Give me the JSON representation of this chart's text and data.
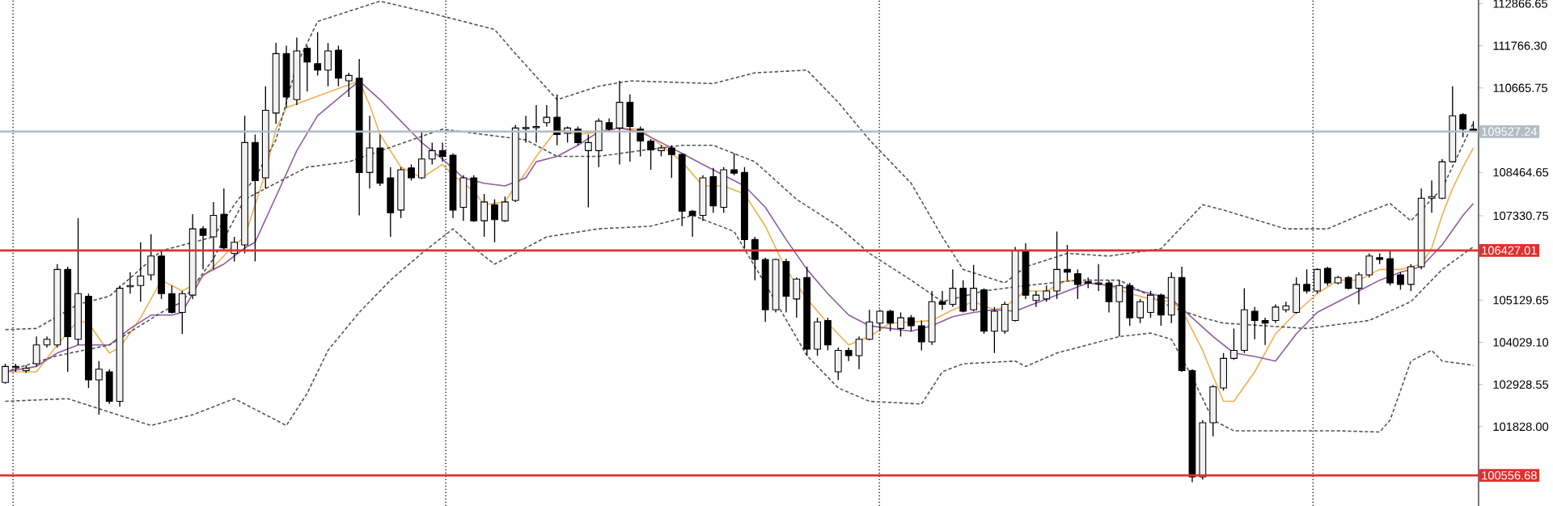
{
  "chart_data": {
    "type": "candlestick",
    "color": "#000000",
    "categories": [
      null,
      null,
      null,
      null,
      null,
      null,
      null,
      null,
      null,
      null,
      null,
      null,
      null,
      null,
      null,
      null,
      null,
      null,
      null,
      null,
      null,
      null,
      null,
      null,
      null,
      null,
      null,
      null,
      null,
      null,
      null,
      null,
      null,
      null,
      null,
      null,
      null,
      null,
      null,
      null,
      null,
      null,
      null,
      null,
      null,
      null,
      null,
      null,
      null,
      null,
      null,
      null,
      null,
      null,
      null,
      null,
      null,
      null,
      null,
      null,
      null,
      null,
      null,
      null,
      null,
      null,
      null,
      null,
      null,
      null,
      null,
      null,
      null,
      null,
      null,
      null,
      null,
      null,
      null,
      null,
      null,
      null,
      null,
      null,
      null,
      null,
      null,
      null,
      null,
      null,
      null,
      null,
      null,
      null,
      null,
      null,
      null,
      null,
      null,
      null,
      null,
      null,
      null,
      null,
      null,
      null,
      null,
      null,
      null,
      null,
      null,
      null,
      null,
      null,
      null,
      null,
      null,
      null,
      null,
      null,
      null,
      null,
      null,
      null,
      null,
      null,
      null,
      null,
      null,
      null,
      null,
      null,
      null,
      null,
      null,
      null,
      null,
      null,
      null,
      null,
      null,
      null
    ],
    "ohlc": [
      [
        102980,
        103470,
        102950,
        103400
      ],
      [
        103370,
        103470,
        103260,
        103400
      ],
      [
        103290,
        103430,
        103230,
        103350
      ],
      [
        103470,
        104180,
        103400,
        103960
      ],
      [
        103960,
        104180,
        103890,
        104110
      ],
      [
        103960,
        106070,
        103890,
        105930
      ],
      [
        105930,
        106000,
        103260,
        104180
      ],
      [
        104110,
        107270,
        103960,
        105300
      ],
      [
        105230,
        105300,
        102840,
        103050
      ],
      [
        103050,
        103540,
        102140,
        103330
      ],
      [
        103260,
        103330,
        102420,
        102490
      ],
      [
        102490,
        105510,
        102350,
        105440
      ],
      [
        105480,
        105860,
        105300,
        105510
      ],
      [
        105510,
        106640,
        105090,
        105760
      ],
      [
        105790,
        106850,
        105650,
        106280
      ],
      [
        106280,
        106420,
        105160,
        105300
      ],
      [
        105300,
        105510,
        104780,
        104810
      ],
      [
        104810,
        105370,
        104250,
        105300
      ],
      [
        105260,
        107370,
        105160,
        106990
      ],
      [
        106990,
        107060,
        105930,
        106820
      ],
      [
        106780,
        107690,
        105930,
        107340
      ],
      [
        107370,
        108040,
        106420,
        106490
      ],
      [
        106350,
        106780,
        106140,
        106640
      ],
      [
        106570,
        109940,
        106350,
        109240
      ],
      [
        109240,
        109450,
        106140,
        108250
      ],
      [
        108320,
        110710,
        108040,
        110080
      ],
      [
        110010,
        111840,
        109730,
        111560
      ],
      [
        111560,
        111770,
        110150,
        110430
      ],
      [
        110360,
        111980,
        110220,
        111630
      ],
      [
        111700,
        111770,
        110570,
        111340
      ],
      [
        111300,
        112120,
        110990,
        111130
      ],
      [
        111130,
        111840,
        110710,
        111630
      ],
      [
        111650,
        111770,
        110710,
        110920
      ],
      [
        110850,
        111060,
        110430,
        110990
      ],
      [
        110920,
        111420,
        107340,
        108460
      ],
      [
        108460,
        109940,
        108040,
        109100
      ],
      [
        109100,
        109450,
        108110,
        108180
      ],
      [
        108320,
        108600,
        106780,
        107410
      ],
      [
        107480,
        108600,
        107270,
        108530
      ],
      [
        108580,
        108670,
        108250,
        108320
      ],
      [
        108320,
        109520,
        108290,
        108810
      ],
      [
        108810,
        109240,
        108670,
        109030
      ],
      [
        109030,
        109240,
        108740,
        108880
      ],
      [
        108910,
        108960,
        107270,
        107480
      ],
      [
        107550,
        108390,
        107200,
        108320
      ],
      [
        108320,
        108390,
        107170,
        107200
      ],
      [
        107200,
        107900,
        106780,
        107690
      ],
      [
        107620,
        107760,
        106640,
        107230
      ],
      [
        107200,
        107830,
        107170,
        107690
      ],
      [
        107730,
        109700,
        107690,
        109620
      ],
      [
        109600,
        109940,
        109240,
        109630
      ],
      [
        109630,
        110220,
        109240,
        109660
      ],
      [
        109760,
        110220,
        109660,
        109900
      ],
      [
        109900,
        110500,
        109170,
        109450
      ],
      [
        109480,
        109660,
        109240,
        109620
      ],
      [
        109590,
        109660,
        109170,
        109240
      ],
      [
        109030,
        109450,
        107550,
        109240
      ],
      [
        109030,
        109870,
        108600,
        109800
      ],
      [
        109760,
        109870,
        109520,
        109590
      ],
      [
        109620,
        110850,
        108670,
        110290
      ],
      [
        110290,
        110500,
        108740,
        109660
      ],
      [
        109590,
        109660,
        108880,
        109280
      ],
      [
        109280,
        109330,
        108530,
        109050
      ],
      [
        109030,
        109170,
        108880,
        109100
      ],
      [
        109100,
        109170,
        108320,
        108930
      ],
      [
        108930,
        108960,
        107060,
        107450
      ],
      [
        107450,
        107480,
        106780,
        107340
      ],
      [
        107340,
        108390,
        107200,
        108320
      ],
      [
        108350,
        108580,
        107410,
        107590
      ],
      [
        107550,
        108600,
        107410,
        108530
      ],
      [
        108530,
        108960,
        108390,
        108440
      ],
      [
        108460,
        108600,
        106490,
        106710
      ],
      [
        106710,
        106780,
        105650,
        106190
      ],
      [
        106190,
        106240,
        104560,
        104880
      ],
      [
        104880,
        106210,
        104810,
        106190
      ],
      [
        106140,
        106210,
        104810,
        105230
      ],
      [
        105160,
        105720,
        104670,
        105680
      ],
      [
        105720,
        106000,
        103680,
        103850
      ],
      [
        103850,
        104670,
        103680,
        104560
      ],
      [
        104600,
        104670,
        103820,
        103960
      ],
      [
        103260,
        103890,
        103050,
        103820
      ],
      [
        103820,
        103890,
        103540,
        103680
      ],
      [
        103680,
        104180,
        103330,
        104110
      ],
      [
        104110,
        104880,
        104080,
        104560
      ],
      [
        104530,
        104880,
        104320,
        104840
      ],
      [
        104840,
        104880,
        104320,
        104530
      ],
      [
        104390,
        104810,
        104180,
        104670
      ],
      [
        104670,
        104740,
        104320,
        104460
      ],
      [
        104460,
        104600,
        103820,
        104040
      ],
      [
        104040,
        105370,
        103960,
        105090
      ],
      [
        105090,
        105370,
        104880,
        105020
      ],
      [
        105020,
        105930,
        104950,
        105440
      ],
      [
        105440,
        105650,
        104810,
        104840
      ],
      [
        104880,
        106050,
        104840,
        105440
      ],
      [
        105400,
        105440,
        104250,
        104320
      ],
      [
        104320,
        104950,
        103750,
        104840
      ],
      [
        104320,
        105090,
        104250,
        105020
      ],
      [
        104600,
        106520,
        104570,
        106420
      ],
      [
        106420,
        106610,
        105160,
        105260
      ],
      [
        105120,
        105370,
        104950,
        105260
      ],
      [
        105160,
        105510,
        105090,
        105370
      ],
      [
        105370,
        106920,
        105160,
        105930
      ],
      [
        105930,
        106570,
        105650,
        105860
      ],
      [
        105820,
        105930,
        105160,
        105540
      ],
      [
        105610,
        105720,
        105440,
        105570
      ],
      [
        105550,
        106070,
        105370,
        105580
      ],
      [
        105580,
        105650,
        104810,
        105090
      ],
      [
        105090,
        105650,
        104180,
        105510
      ],
      [
        105510,
        105580,
        104460,
        104670
      ],
      [
        104670,
        105160,
        104530,
        105090
      ],
      [
        104810,
        105370,
        104670,
        105260
      ],
      [
        105260,
        105300,
        104460,
        104740
      ],
      [
        104740,
        105860,
        104530,
        105720
      ],
      [
        105720,
        106000,
        103260,
        103290
      ],
      [
        103290,
        103330,
        100380,
        100520
      ],
      [
        100520,
        102000,
        100450,
        101930
      ],
      [
        101930,
        102910,
        101580,
        102870
      ],
      [
        102840,
        103750,
        102770,
        103610
      ],
      [
        103610,
        104390,
        103570,
        103820
      ],
      [
        103820,
        105440,
        103750,
        104880
      ],
      [
        104840,
        104950,
        104110,
        104600
      ],
      [
        104600,
        104670,
        103960,
        104530
      ],
      [
        104600,
        105020,
        104530,
        104950
      ],
      [
        104880,
        105090,
        104810,
        104980
      ],
      [
        104810,
        105720,
        104780,
        105540
      ],
      [
        105540,
        105930,
        105300,
        105370
      ],
      [
        105370,
        105960,
        105300,
        105930
      ],
      [
        105960,
        106000,
        105510,
        105580
      ],
      [
        105580,
        105760,
        105540,
        105720
      ],
      [
        105720,
        105760,
        105410,
        105440
      ],
      [
        105440,
        105860,
        105020,
        105790
      ],
      [
        105790,
        106350,
        105720,
        106280
      ],
      [
        106240,
        106350,
        106070,
        106190
      ],
      [
        106210,
        106420,
        105510,
        105580
      ],
      [
        105790,
        105860,
        105400,
        105540
      ],
      [
        105540,
        106070,
        105370,
        106000
      ],
      [
        106000,
        108040,
        105930,
        107790
      ],
      [
        107790,
        108250,
        107410,
        107830
      ],
      [
        107790,
        108810,
        107760,
        108740
      ],
      [
        108740,
        110710,
        108720,
        109940
      ],
      [
        109970,
        110010,
        109380,
        109590
      ],
      [
        109590,
        109800,
        109520,
        109530
      ]
    ],
    "ylim": [
      99760,
      112960
    ],
    "yticks": [
      {
        "value": 112866.65,
        "label": "112866.65"
      },
      {
        "value": 111766.3,
        "label": "111766.30"
      },
      {
        "value": 110665.75,
        "label": "110665.75"
      },
      {
        "value": 108464.65,
        "label": "108464.65"
      },
      {
        "value": 107330.75,
        "label": "107330.75"
      },
      {
        "value": 105129.65,
        "label": "105129.65"
      },
      {
        "value": 104029.1,
        "label": "104029.10"
      },
      {
        "value": 102928.55,
        "label": "102928.55"
      },
      {
        "value": 101828,
        "label": "101828.00"
      }
    ],
    "tick_labels": "y",
    "series": [
      {
        "type": "line",
        "color": "#f0b050",
        "line_style": "solid",
        "values": [
          103260,
          null,
          null,
          103260,
          null,
          103960,
          null,
          104600,
          104530,
          null,
          103750,
          103890,
          null,
          104670,
          null,
          105650,
          null,
          105370,
          105510,
          null,
          106000,
          null,
          106570,
          106780,
          null,
          108460,
          109590,
          110150,
          null,
          null,
          null,
          null,
          null,
          null,
          110850,
          110220,
          109450,
          null,
          108600,
          null,
          108320,
          null,
          108670,
          108390,
          null,
          107970,
          107620,
          null,
          107690,
          108110,
          108460,
          108880,
          null,
          109590,
          null,
          109450,
          null,
          109520,
          null,
          109620,
          null,
          109590,
          null,
          109170,
          null,
          108740,
          null,
          108110,
          null,
          108110,
          null,
          107900,
          null,
          107060,
          null,
          105930,
          null,
          105160,
          null,
          104530,
          null,
          103960,
          null,
          104180,
          null,
          104530,
          null,
          104560,
          null,
          104600,
          null,
          104880,
          null,
          105090,
          null,
          104880,
          104950,
          null,
          105370,
          null,
          105370,
          null,
          105650,
          null,
          105580,
          null,
          105510,
          null,
          105300,
          null,
          105160,
          null,
          105090,
          104880,
          null,
          103820,
          null,
          102490,
          102490,
          null,
          103260,
          null,
          104250,
          null,
          104810,
          null,
          105300,
          null,
          105650,
          null,
          105650,
          null,
          105930,
          null,
          105930,
          null,
          106070,
          106490,
          107340,
          108040,
          108600,
          109100
        ]
      },
      {
        "type": "line",
        "color": "#8e5ea2",
        "line_style": "solid",
        "values": [
          103260,
          null,
          null,
          103400,
          null,
          103750,
          null,
          103960,
          null,
          null,
          103960,
          null,
          104390,
          null,
          104740,
          null,
          104740,
          104810,
          null,
          105790,
          null,
          106070,
          null,
          106490,
          106640,
          null,
          107830,
          null,
          109030,
          null,
          109940,
          null,
          null,
          null,
          110850,
          null,
          110360,
          null,
          109800,
          null,
          109240,
          null,
          108810,
          null,
          108320,
          null,
          108180,
          null,
          108110,
          null,
          108320,
          108740,
          null,
          108880,
          null,
          109170,
          null,
          109520,
          null,
          109620,
          null,
          109520,
          null,
          109240,
          null,
          108960,
          null,
          108670,
          null,
          108390,
          null,
          108110,
          null,
          107550,
          null,
          106710,
          null,
          105930,
          null,
          105300,
          null,
          104740,
          null,
          104460,
          null,
          104390,
          null,
          104320,
          null,
          104460,
          null,
          104700,
          null,
          104810,
          null,
          104880,
          null,
          104840,
          null,
          null,
          105160,
          null,
          105370,
          null,
          105580,
          null,
          105510,
          null,
          105440,
          null,
          105300,
          null,
          105160,
          null,
          104670,
          null,
          104180,
          null,
          103750,
          null,
          103660,
          null,
          103540,
          null,
          104250,
          null,
          104810,
          null,
          105090,
          null,
          105370,
          null,
          105650,
          null,
          105860,
          null,
          106000,
          null,
          106570,
          null,
          107340,
          107650
        ]
      },
      {
        "type": "line",
        "color": "#555555",
        "line_style": "dashed",
        "values": [
          104360,
          null,
          null,
          104390,
          null,
          null,
          null,
          105020,
          null,
          null,
          105230,
          null,
          null,
          null,
          null,
          106420,
          null,
          null,
          null,
          null,
          106780,
          null,
          107620,
          null,
          108320,
          null,
          109310,
          null,
          111270,
          null,
          112400,
          null,
          null,
          null,
          null,
          null,
          112930,
          null,
          null,
          null,
          null,
          112610,
          null,
          null,
          null,
          null,
          null,
          112190,
          null,
          111560,
          null,
          null,
          null,
          110360,
          null,
          null,
          null,
          110710,
          null,
          null,
          110850,
          null,
          null,
          null,
          null,
          null,
          null,
          null,
          110780,
          null,
          null,
          null,
          111060,
          null,
          null,
          null,
          null,
          111130,
          null,
          null,
          110290,
          null,
          null,
          109310,
          null,
          null,
          null,
          108180,
          null,
          null,
          106780,
          null,
          105930,
          null,
          null,
          null,
          105580,
          null,
          106000,
          null,
          null,
          null,
          106350,
          null,
          null,
          null,
          106280,
          null,
          null,
          null,
          null,
          106470,
          null,
          null,
          null,
          107620,
          null,
          107480,
          null,
          null,
          null,
          null,
          null,
          106990,
          null,
          null,
          null,
          106990,
          null,
          null,
          107340,
          null,
          null,
          107650,
          null,
          107200,
          null,
          null,
          108040,
          null,
          null,
          109760
        ]
      },
      {
        "type": "line",
        "color": "#555555",
        "line_style": "dashed",
        "values": [
          103260,
          null,
          null,
          null,
          null,
          103680,
          null,
          null,
          null,
          null,
          103960,
          null,
          null,
          null,
          null,
          104810,
          null,
          105090,
          null,
          null,
          106210,
          null,
          null,
          107760,
          null,
          null,
          null,
          null,
          null,
          108600,
          null,
          null,
          null,
          108740,
          null,
          null,
          null,
          null,
          null,
          null,
          null,
          null,
          109590,
          null,
          null,
          null,
          null,
          null,
          null,
          null,
          109310,
          null,
          null,
          108880,
          null,
          null,
          null,
          108880,
          null,
          null,
          null,
          109030,
          null,
          null,
          null,
          109170,
          null,
          null,
          109170,
          null,
          null,
          null,
          108740,
          null,
          null,
          null,
          107760,
          null,
          null,
          null,
          107060,
          null,
          null,
          106350,
          null,
          null,
          null,
          105650,
          null,
          null,
          105090,
          null,
          null,
          null,
          105370,
          null,
          null,
          null,
          105510,
          null,
          null,
          null,
          null,
          105650,
          null,
          null,
          null,
          105650,
          null,
          null,
          null,
          null,
          104950,
          null,
          null,
          104670,
          null,
          104530,
          null,
          null,
          null,
          null,
          null,
          null,
          null,
          104390,
          null,
          null,
          null,
          null,
          null,
          104600,
          null,
          null,
          null,
          105090,
          null,
          null,
          105930,
          null,
          null,
          106520
        ]
      },
      {
        "type": "line",
        "color": "#555555",
        "line_style": "dashed",
        "values": [
          102490,
          null,
          null,
          null,
          null,
          null,
          102560,
          null,
          null,
          null,
          102210,
          null,
          null,
          null,
          101860,
          null,
          null,
          null,
          102140,
          null,
          null,
          null,
          102560,
          null,
          null,
          102140,
          null,
          101860,
          null,
          102700,
          null,
          103820,
          null,
          null,
          104810,
          null,
          null,
          105650,
          null,
          null,
          106350,
          null,
          null,
          106990,
          null,
          106490,
          null,
          106070,
          null,
          null,
          null,
          null,
          106780,
          null,
          null,
          null,
          null,
          106990,
          null,
          null,
          null,
          null,
          107060,
          null,
          null,
          null,
          107340,
          null,
          null,
          null,
          106920,
          null,
          null,
          null,
          105090,
          null,
          null,
          103680,
          null,
          null,
          102840,
          null,
          null,
          102490,
          null,
          null,
          null,
          null,
          102420,
          null,
          103260,
          null,
          103470,
          null,
          null,
          null,
          null,
          103540,
          103400,
          null,
          null,
          103750,
          null,
          null,
          null,
          null,
          null,
          104180,
          null,
          null,
          104270,
          null,
          104110,
          null,
          103120,
          null,
          102000,
          null,
          101720,
          null,
          null,
          null,
          null,
          101720,
          null,
          null,
          null,
          null,
          101720,
          null,
          null,
          null,
          101690,
          102000,
          null,
          103540,
          null,
          103820,
          103540,
          null,
          null,
          103430
        ]
      }
    ],
    "ref_lines": [
      {
        "axis": "y",
        "value": 109527.24,
        "label": "109527.24",
        "color": "#b4bcc4"
      },
      {
        "axis": "y",
        "value": 106427.01,
        "label": "106427.01",
        "color": "#e0302e"
      },
      {
        "axis": "y",
        "value": 100556.68,
        "label": "100556.68",
        "color": "#e0302e"
      }
    ]
  }
}
